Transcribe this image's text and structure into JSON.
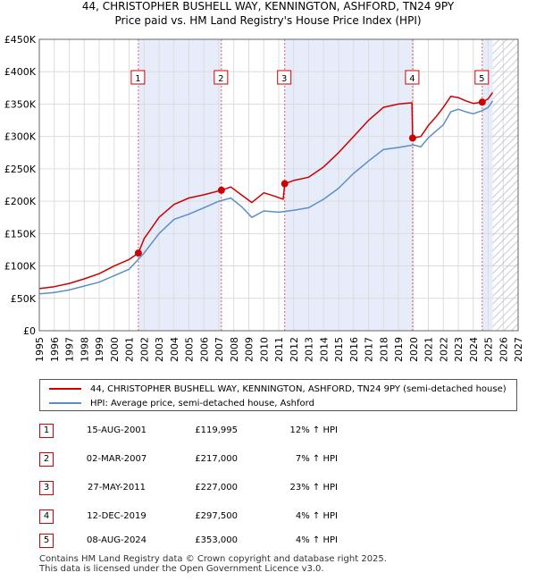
{
  "title_line1": "44, CHRISTOPHER BUSHELL WAY, KENNINGTON, ASHFORD, TN24 9PY",
  "title_line2": "Price paid vs. HM Land Registry's House Price Index (HPI)",
  "colors": {
    "property": "#cc0000",
    "hpi": "#5b8ec8",
    "shade": "#e6ecfa",
    "vline": "#e06060"
  },
  "legend": {
    "property_label": "44, CHRISTOPHER BUSHELL WAY, KENNINGTON, ASHFORD, TN24 9PY (semi-detached house)",
    "hpi_label": "HPI: Average price, semi-detached house, Ashford"
  },
  "sales": [
    {
      "num": "1",
      "date": "15-AUG-2001",
      "price": "£119,995",
      "hpi": "12% ↑ HPI"
    },
    {
      "num": "2",
      "date": "02-MAR-2007",
      "price": "£217,000",
      "hpi": "7% ↑ HPI"
    },
    {
      "num": "3",
      "date": "27-MAY-2011",
      "price": "£227,000",
      "hpi": "23% ↑ HPI"
    },
    {
      "num": "4",
      "date": "12-DEC-2019",
      "price": "£297,500",
      "hpi": "4% ↑ HPI"
    },
    {
      "num": "5",
      "date": "08-AUG-2024",
      "price": "£353,000",
      "hpi": "4% ↑ HPI"
    }
  ],
  "footer": {
    "line1": "Contains HM Land Registry data © Crown copyright and database right 2025.",
    "line2": "This data is licensed under the Open Government Licence v3.0."
  },
  "chart_data": {
    "type": "line",
    "xlim": [
      1995,
      2027
    ],
    "ylim": [
      0,
      450000
    ],
    "x_ticks": [
      "1995",
      "1996",
      "1997",
      "1998",
      "1999",
      "2000",
      "2001",
      "2002",
      "2003",
      "2004",
      "2005",
      "2006",
      "2007",
      "2008",
      "2009",
      "2010",
      "2011",
      "2012",
      "2013",
      "2014",
      "2015",
      "2016",
      "2017",
      "2018",
      "2019",
      "2020",
      "2021",
      "2022",
      "2023",
      "2024",
      "2025",
      "2026",
      "2027"
    ],
    "y_ticks": [
      {
        "value": 0,
        "label": "£0"
      },
      {
        "value": 50000,
        "label": "£50K"
      },
      {
        "value": 100000,
        "label": "£100K"
      },
      {
        "value": 150000,
        "label": "£150K"
      },
      {
        "value": 200000,
        "label": "£200K"
      },
      {
        "value": 250000,
        "label": "£250K"
      },
      {
        "value": 300000,
        "label": "£300K"
      },
      {
        "value": 350000,
        "label": "£350K"
      },
      {
        "value": 400000,
        "label": "£400K"
      },
      {
        "value": 450000,
        "label": "£450K"
      }
    ],
    "grid": true,
    "future_hatch_from": 2025.3,
    "ownership_shading": [
      [
        2001.62,
        2007.17
      ],
      [
        2011.4,
        2019.95
      ],
      [
        2024.6,
        2025.3
      ]
    ],
    "sale_markers": [
      {
        "label": "1",
        "x": 2001.62,
        "y": 119995
      },
      {
        "label": "2",
        "x": 2007.17,
        "y": 217000
      },
      {
        "label": "3",
        "x": 2011.4,
        "y": 227000
      },
      {
        "label": "4",
        "x": 2019.95,
        "y": 297500
      },
      {
        "label": "5",
        "x": 2024.6,
        "y": 353000
      }
    ],
    "series": [
      {
        "name": "44, CHRISTOPHER BUSHELL WAY, KENNINGTON, ASHFORD, TN24 9PY (semi-detached house)",
        "x": [
          1995,
          1996,
          1997,
          1998,
          1999,
          2000,
          2001,
          2001.62,
          2002,
          2003,
          2004,
          2005,
          2006,
          2007.17,
          2007.8,
          2008.5,
          2009.2,
          2010,
          2010.7,
          2011.3,
          2011.4,
          2012,
          2013,
          2014,
          2015,
          2016,
          2017,
          2018,
          2019,
          2019.9,
          2019.95,
          2020.5,
          2021,
          2021.5,
          2022,
          2022.5,
          2023,
          2023.5,
          2024,
          2024.6,
          2025,
          2025.3
        ],
        "y": [
          65000,
          68000,
          73000,
          80000,
          88000,
          100000,
          110000,
          119995,
          142000,
          175000,
          195000,
          205000,
          210000,
          217000,
          222000,
          210000,
          198000,
          213000,
          208000,
          203000,
          227000,
          232000,
          237000,
          253000,
          275000,
          300000,
          325000,
          345000,
          350000,
          352000,
          297500,
          300000,
          317000,
          330000,
          345000,
          362000,
          360000,
          355000,
          351000,
          353000,
          358000,
          368000
        ]
      },
      {
        "name": "HPI: Average price, semi-detached house, Ashford",
        "x": [
          1995,
          1996,
          1997,
          1998,
          1999,
          2000,
          2001,
          2002,
          2003,
          2004,
          2005,
          2006,
          2007,
          2007.8,
          2008.5,
          2009.2,
          2010,
          2011,
          2012,
          2013,
          2014,
          2015,
          2016,
          2017,
          2018,
          2019,
          2020,
          2020.5,
          2021,
          2022,
          2022.5,
          2023,
          2023.5,
          2024,
          2024.6,
          2025,
          2025.3
        ],
        "y": [
          57000,
          59000,
          63000,
          69000,
          75000,
          85000,
          95000,
          120000,
          150000,
          172000,
          180000,
          190000,
          200000,
          205000,
          192000,
          175000,
          185000,
          183000,
          186000,
          190000,
          203000,
          220000,
          243000,
          262000,
          280000,
          283000,
          287000,
          284000,
          298000,
          318000,
          338000,
          342000,
          338000,
          335000,
          340000,
          345000,
          355000
        ]
      }
    ]
  }
}
